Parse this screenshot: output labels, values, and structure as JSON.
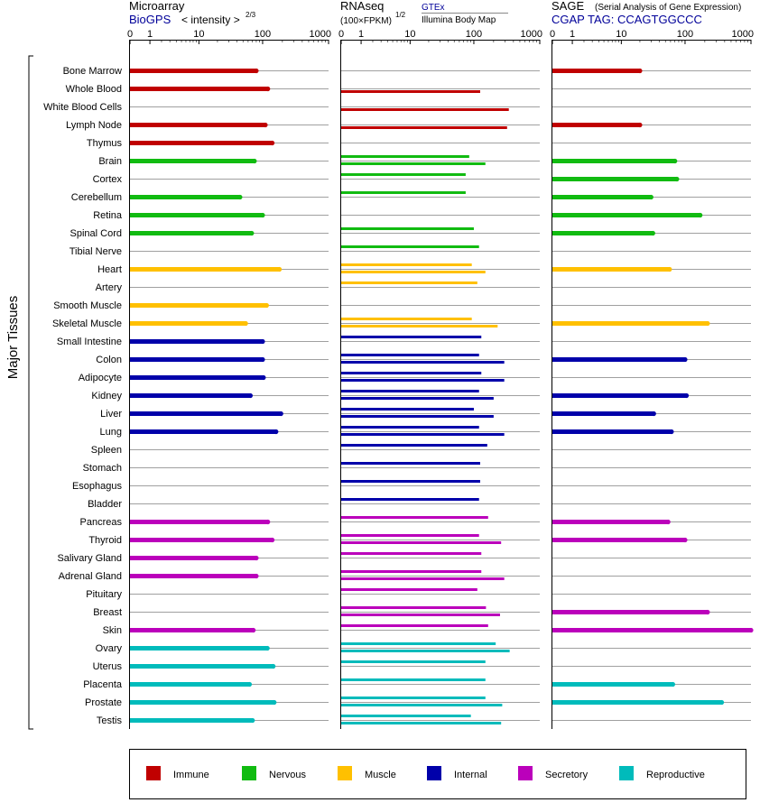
{
  "side_label": "Major Tissues",
  "colors": {
    "Immune": "#c00000",
    "Nervous": "#11bb11",
    "Muscle": "#ffc000",
    "Internal": "#0000aa",
    "Secretory": "#bb00bb",
    "Reproductive": "#00bbbb",
    "link": "#000099",
    "rule": "#a0a0a0"
  },
  "tissues": [
    "Bone Marrow",
    "Whole Blood",
    "White Blood Cells",
    "Lymph Node",
    "Thymus",
    "Brain",
    "Cortex",
    "Cerebellum",
    "Retina",
    "Spinal Cord",
    "Tibial Nerve",
    "Heart",
    "Artery",
    "Smooth Muscle",
    "Skeletal Muscle",
    "Small Intestine",
    "Colon",
    "Adipocyte",
    "Kidney",
    "Liver",
    "Lung",
    "Spleen",
    "Stomach",
    "Esophagus",
    "Bladder",
    "Pancreas",
    "Thyroid",
    "Salivary Gland",
    "Adrenal Gland",
    "Pituitary",
    "Breast",
    "Skin",
    "Ovary",
    "Uterus",
    "Placenta",
    "Prostate",
    "Testis"
  ],
  "categories": [
    "Immune",
    "Immune",
    "Immune",
    "Immune",
    "Immune",
    "Nervous",
    "Nervous",
    "Nervous",
    "Nervous",
    "Nervous",
    "Nervous",
    "Muscle",
    "Muscle",
    "Muscle",
    "Muscle",
    "Internal",
    "Internal",
    "Internal",
    "Internal",
    "Internal",
    "Internal",
    "Internal",
    "Internal",
    "Internal",
    "Internal",
    "Secretory",
    "Secretory",
    "Secretory",
    "Secretory",
    "Secretory",
    "Secretory",
    "Secretory",
    "Reproductive",
    "Reproductive",
    "Reproductive",
    "Reproductive",
    "Reproductive"
  ],
  "legend": [
    "Immune",
    "Nervous",
    "Muscle",
    "Internal",
    "Secretory",
    "Reproductive"
  ],
  "panels": {
    "microarray": {
      "title": "Microarray",
      "subtitle_link": "BioGPS",
      "subtitle_extra": "< intensity >",
      "exponent": "2/3"
    },
    "rnaseq": {
      "title": "RNAseq",
      "subtitle": "(100×FPKM)",
      "exponent": "1/2",
      "source_top": "GTEx",
      "source_bottom": "Illumina Body Map"
    },
    "sage": {
      "title": "SAGE",
      "title_note": "(Serial Analysis of Gene Expression)",
      "tag": "CGAP TAG: CCAGTGGCCC"
    }
  },
  "chart_data": [
    {
      "type": "bar",
      "title": "Microarray",
      "axis_ticks": [
        "0",
        "1",
        "10",
        "100",
        "1000"
      ],
      "xlim": [
        0,
        1000
      ],
      "series": [
        {
          "values": [
            80,
            120,
            null,
            110,
            140,
            75,
            null,
            45,
            100,
            68,
            null,
            180,
            null,
            115,
            55,
            100,
            100,
            103,
            65,
            190,
            160,
            null,
            null,
            null,
            null,
            120,
            140,
            80,
            80,
            null,
            null,
            72,
            118,
            145,
            63,
            150,
            70
          ]
        }
      ]
    },
    {
      "type": "bar",
      "title": "RNAseq",
      "axis_ticks": [
        "0",
        "1",
        "10",
        "100",
        "1000"
      ],
      "xlim": [
        0,
        1000
      ],
      "series": [
        {
          "name": "GTEx",
          "values": [
            null,
            null,
            null,
            null,
            null,
            85,
            75,
            75,
            null,
            100,
            120,
            93,
            113,
            null,
            93,
            130,
            120,
            130,
            120,
            100,
            120,
            160,
            125,
            125,
            120,
            165,
            120,
            130,
            130,
            113,
            153,
            165,
            215,
            150,
            150,
            150,
            90
          ]
        },
        {
          "name": "Illumina Body Map",
          "values": [
            null,
            125,
            340,
            320,
            null,
            150,
            null,
            null,
            null,
            null,
            null,
            150,
            null,
            null,
            230,
            null,
            290,
            290,
            200,
            200,
            290,
            null,
            null,
            null,
            null,
            null,
            260,
            null,
            290,
            null,
            250,
            null,
            350,
            null,
            null,
            270,
            260
          ]
        }
      ]
    },
    {
      "type": "bar",
      "title": "SAGE",
      "axis_ticks": [
        "0",
        "1",
        "10",
        "100",
        "1000"
      ],
      "xlim": [
        0,
        1000
      ],
      "series": [
        {
          "values": [
            20,
            null,
            null,
            20,
            null,
            70,
            75,
            30,
            170,
            32,
            null,
            58,
            null,
            null,
            220,
            null,
            100,
            null,
            105,
            33,
            62,
            null,
            null,
            null,
            null,
            55,
            100,
            null,
            null,
            null,
            220,
            1000,
            null,
            null,
            65,
            360,
            null
          ]
        }
      ]
    }
  ]
}
